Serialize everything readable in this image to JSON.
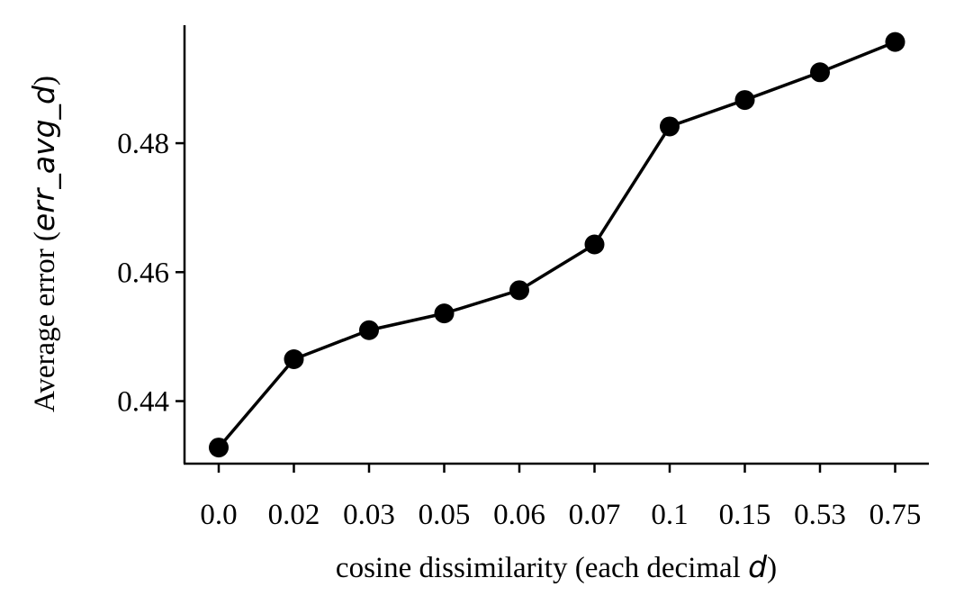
{
  "chart_data": {
    "type": "line",
    "categories": [
      "0.0",
      "0.02",
      "0.03",
      "0.05",
      "0.06",
      "0.07",
      "0.1",
      "0.15",
      "0.53",
      "0.75"
    ],
    "values": [
      0.4328,
      0.4465,
      0.451,
      0.4536,
      0.4572,
      0.4643,
      0.4826,
      0.4867,
      0.491,
      0.4957
    ],
    "xlabel": {
      "prefix": "cosine dissimilarity (each decimal ",
      "math": "d",
      "suffix": ")"
    },
    "ylabel": {
      "prefix": "Average error (",
      "math": "err_avg_d",
      "suffix": ")"
    },
    "ylim": [
      0.4303,
      0.4983
    ],
    "yticks": [
      0.44,
      0.46,
      0.48
    ],
    "ytick_labels": [
      "0.44",
      "0.46",
      "0.48"
    ],
    "grid": false,
    "line_color": "#000000",
    "marker_color": "#000000"
  }
}
